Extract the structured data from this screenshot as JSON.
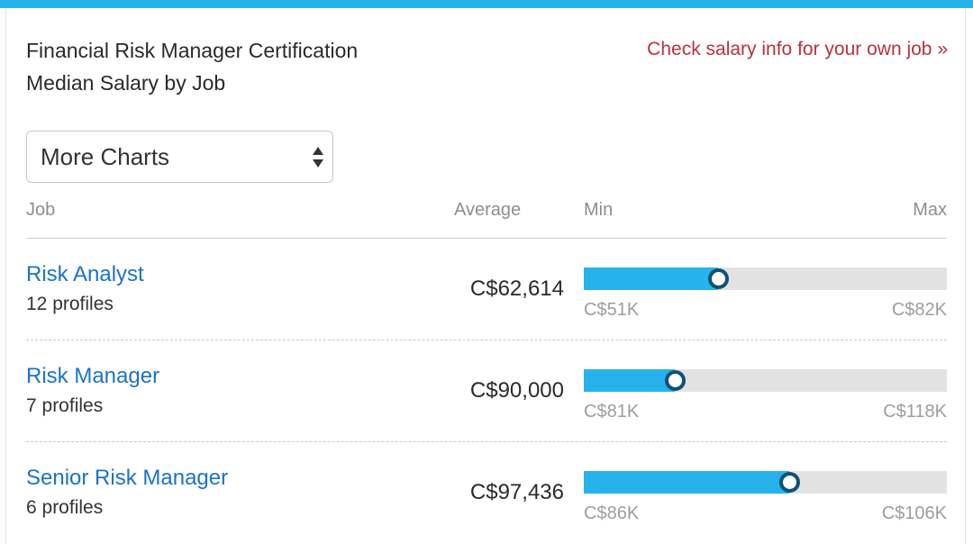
{
  "card": {
    "title_line1": "Financial Risk Manager Certification",
    "title_line2": "Median Salary by Job",
    "own_job_link": "Check salary info for your own job »"
  },
  "select": {
    "value": "More Charts",
    "icon": "updown-arrows-icon"
  },
  "table": {
    "headers": {
      "job": "Job",
      "average": "Average",
      "min": "Min",
      "max": "Max"
    },
    "rows": [
      {
        "job": "Risk Analyst",
        "profiles": "12 profiles",
        "average": "C$62,614",
        "min_label": "C$51K",
        "max_label": "C$82K",
        "fill_fraction": 0.37
      },
      {
        "job": "Risk Manager",
        "profiles": "7 profiles",
        "average": "C$90,000",
        "min_label": "C$81K",
        "max_label": "C$118K",
        "fill_fraction": 0.25
      },
      {
        "job": "Senior Risk Manager",
        "profiles": "6 profiles",
        "average": "C$97,436",
        "min_label": "C$86K",
        "max_label": "C$106K",
        "fill_fraction": 0.565
      }
    ]
  },
  "colors": {
    "accent_bar": "#27b2ec",
    "range_fill": "#27b2ec",
    "range_track": "#e2e2e2",
    "marker_ring": "#0e5275",
    "job_link": "#1b74c5",
    "own_job_link": "#b6333d"
  }
}
